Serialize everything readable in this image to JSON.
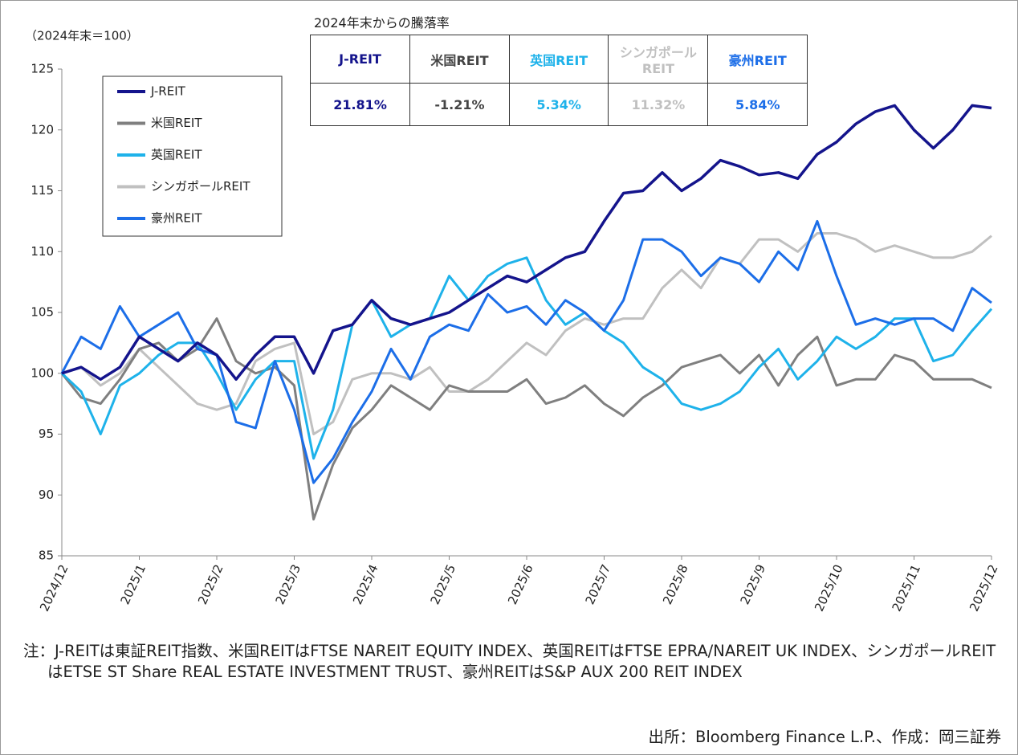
{
  "chart_data": {
    "type": "line",
    "y_label": "（2024年末＝100）",
    "ylim": [
      85,
      125
    ],
    "yticks": [
      85,
      90,
      95,
      100,
      105,
      110,
      115,
      120,
      125
    ],
    "grid": false,
    "categories": [
      "2024/12",
      null,
      null,
      null,
      "2025/1",
      null,
      null,
      null,
      "2025/2",
      null,
      null,
      null,
      "2025/3",
      null,
      null,
      null,
      "2025/4",
      null,
      null,
      null,
      "2025/5",
      null,
      null,
      null,
      "2025/6",
      null,
      null,
      null,
      "2025/7",
      null,
      null,
      null,
      "2025/8",
      null,
      null,
      null,
      "2025/9",
      null,
      null,
      null,
      "2025/10",
      null,
      null,
      null,
      "2025/11",
      null,
      null,
      null,
      "2025/12"
    ],
    "series": [
      {
        "name": "J-REIT",
        "color": "#14148c",
        "values": [
          100,
          100.5,
          99.5,
          100.5,
          103,
          102,
          101,
          102.5,
          101.5,
          99.5,
          101.5,
          103,
          103,
          100,
          103.5,
          104,
          106,
          104.5,
          104,
          104.5,
          105,
          106,
          107,
          108,
          107.5,
          108.5,
          109.5,
          110,
          112.5,
          114.8,
          115,
          116.5,
          115,
          116,
          117.5,
          117,
          116.3,
          116.5,
          116,
          118,
          119,
          120.5,
          121.5,
          122,
          120,
          118.5,
          120,
          122,
          121.8
        ]
      },
      {
        "name": "米国REIT",
        "color": "#7f7f7f",
        "values": [
          100,
          98,
          97.5,
          99.5,
          102,
          102.5,
          101,
          102,
          104.5,
          101,
          100,
          100.5,
          99,
          88,
          92.5,
          95.5,
          97,
          99,
          98,
          97,
          99,
          98.5,
          98.5,
          98.5,
          99.5,
          97.5,
          98,
          99,
          97.5,
          96.5,
          98,
          99,
          100.5,
          101,
          101.5,
          100,
          101.5,
          99,
          101.5,
          103,
          99,
          99.5,
          99.5,
          101.5,
          101,
          99.5,
          99.5,
          99.5,
          98.8
        ]
      },
      {
        "name": "英国REIT",
        "color": "#1eb2ea",
        "values": [
          100,
          98.5,
          95,
          99,
          100,
          101.5,
          102.5,
          102.5,
          100,
          97,
          99.5,
          101,
          101,
          93,
          97,
          104,
          106,
          103,
          104,
          104.5,
          108,
          106,
          108,
          109,
          109.5,
          106,
          104,
          105,
          103.5,
          102.5,
          100.5,
          99.5,
          97.5,
          97,
          97.5,
          98.5,
          100.5,
          102,
          99.5,
          101,
          103,
          102,
          103,
          104.5,
          104.5,
          101,
          101.5,
          103.5,
          105.3
        ]
      },
      {
        "name": "シンガポールREIT",
        "color": "#c0c0c0",
        "values": [
          100,
          100.5,
          99,
          100,
          102,
          100.5,
          99,
          97.5,
          97,
          97.5,
          101,
          102,
          102.5,
          95,
          96,
          99.5,
          100,
          100,
          99.5,
          100.5,
          98.5,
          98.5,
          99.5,
          101,
          102.5,
          101.5,
          103.5,
          104.5,
          104,
          104.5,
          104.5,
          107,
          108.5,
          107,
          109.5,
          109,
          111,
          111,
          110,
          111.5,
          111.5,
          111,
          110,
          110.5,
          110,
          109.5,
          109.5,
          110,
          111.3
        ]
      },
      {
        "name": "豪州REIT",
        "color": "#1c6ee8",
        "values": [
          100,
          103,
          102,
          105.5,
          103,
          104,
          105,
          102,
          101.5,
          96,
          95.5,
          101,
          97,
          91,
          93,
          96,
          98.5,
          102,
          99.5,
          103,
          104,
          103.5,
          106.5,
          105,
          105.5,
          104,
          106,
          105,
          103.5,
          106,
          111,
          111,
          110,
          108,
          109.5,
          109,
          107.5,
          110,
          108.5,
          112.5,
          108,
          104,
          104.5,
          104,
          104.5,
          104.5,
          103.5,
          107,
          105.8
        ]
      }
    ],
    "table": {
      "title": "2024年末からの騰落率",
      "columns": [
        "J-REIT",
        "米国REIT",
        "英国REIT",
        "シンガポールREIT",
        "豪州REIT"
      ],
      "values": [
        "21.81%",
        "-1.21%",
        "5.34%",
        "11.32%",
        "5.84%"
      ]
    },
    "note": "注：J-REITは東証REIT指数、米国REITはFTSE NAREIT EQUITY INDEX、英国REITはFTSE EPRA/NAREIT UK INDEX、シンガポールREITはETSE ST Share REAL ESTATE INVESTMENT TRUST、豪州REITはS&P AUX 200 REIT INDEX",
    "source": "出所：Bloomberg Finance L.P.、作成：岡三証券"
  }
}
